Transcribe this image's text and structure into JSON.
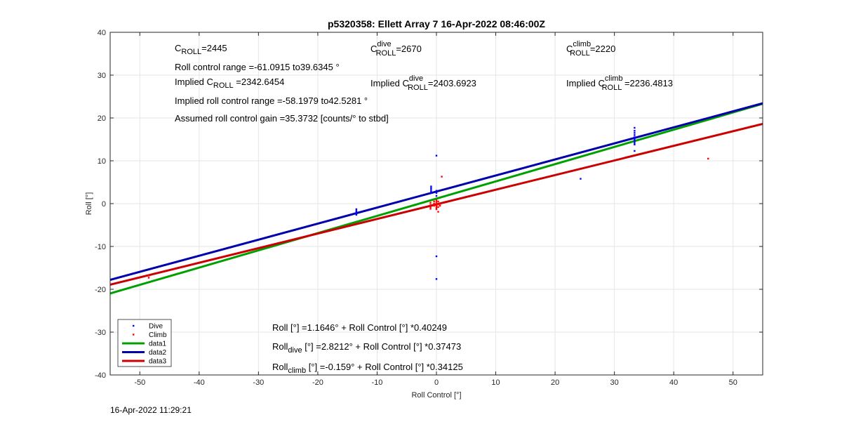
{
  "chart_data": {
    "type": "scatter",
    "title": "p5320358: Ellett Array 7 16-Apr-2022 08:46:00Z",
    "xlabel": "Roll Control [°]",
    "ylabel": "Roll [°]",
    "xlim": [
      -55,
      55
    ],
    "ylim": [
      -40,
      40
    ],
    "xticks": [
      -50,
      -40,
      -30,
      -20,
      -10,
      0,
      10,
      20,
      30,
      40,
      50
    ],
    "yticks": [
      -40,
      -30,
      -20,
      -10,
      0,
      10,
      20,
      30,
      40
    ],
    "grid": true,
    "legend_position": "bottom-left",
    "series": [
      {
        "name": "Dive",
        "kind": "points",
        "color": "#0000ff",
        "points": [
          [
            -13.5,
            -1.3
          ],
          [
            -13.5,
            -1.7
          ],
          [
            -13.5,
            -2.0
          ],
          [
            -13.5,
            -2.3
          ],
          [
            -13.5,
            -2.6
          ],
          [
            -0.9,
            4.0
          ],
          [
            -0.9,
            3.6
          ],
          [
            -0.9,
            3.2
          ],
          [
            -0.9,
            2.8
          ],
          [
            -0.9,
            2.5
          ],
          [
            0,
            11.2
          ],
          [
            0,
            -12.3
          ],
          [
            0,
            -17.6
          ],
          [
            0,
            3.0
          ],
          [
            0,
            2.5
          ],
          [
            0,
            1.8
          ],
          [
            24.3,
            5.8
          ],
          [
            33.4,
            17.7
          ],
          [
            33.4,
            17.0
          ],
          [
            33.4,
            16.5
          ],
          [
            33.4,
            16.0
          ],
          [
            33.4,
            15.5
          ],
          [
            33.4,
            15.0
          ],
          [
            33.4,
            14.6
          ],
          [
            33.4,
            14.2
          ],
          [
            33.4,
            13.8
          ],
          [
            33.4,
            12.3
          ]
        ]
      },
      {
        "name": "Climb",
        "kind": "points",
        "color": "#ff0000",
        "points": [
          [
            -48.5,
            -16.8
          ],
          [
            -48.5,
            -17.3
          ],
          [
            -1.0,
            0.2
          ],
          [
            -1.0,
            -0.3
          ],
          [
            -1.0,
            -0.8
          ],
          [
            -1.0,
            -1.2
          ],
          [
            -0.4,
            0.5
          ],
          [
            -0.4,
            0.0
          ],
          [
            -0.4,
            -0.5
          ],
          [
            0,
            0.8
          ],
          [
            0,
            0.4
          ],
          [
            0,
            0.0
          ],
          [
            0,
            -0.3
          ],
          [
            0,
            -0.6
          ],
          [
            0,
            -1.0
          ],
          [
            0,
            -1.3
          ],
          [
            0.3,
            0.5
          ],
          [
            0.3,
            -0.2
          ],
          [
            0.3,
            -0.8
          ],
          [
            0.3,
            -1.9
          ],
          [
            0.6,
            -0.1
          ],
          [
            0.6,
            -0.5
          ],
          [
            0.9,
            6.3
          ],
          [
            45.8,
            10.5
          ]
        ]
      },
      {
        "name": "data1",
        "kind": "line",
        "color": "#00a000",
        "intercept": 1.1646,
        "slope": 0.40249
      },
      {
        "name": "data2",
        "kind": "line",
        "color": "#0000aa",
        "intercept": 2.8212,
        "slope": 0.37473
      },
      {
        "name": "data3",
        "kind": "line",
        "color": "#cc0000",
        "intercept": -0.159,
        "slope": 0.34125
      }
    ],
    "annotations": {
      "c_roll": {
        "base": "C",
        "sub": "ROLL",
        "value": "=2445"
      },
      "roll_range": "Roll control range =-61.0915 to39.6345 °",
      "implied_c_roll": {
        "prefix": "Implied C",
        "sub": "ROLL",
        "value": " =2342.6454"
      },
      "implied_range": "Implied roll control range =-58.1979 to42.5281 °",
      "gain": "Assumed roll control gain =35.3732 [counts/° to stbd]",
      "c_dive": {
        "base": "C",
        "sup": "dive",
        "sub": "ROLL",
        "value": "=2670"
      },
      "implied_c_dive": {
        "prefix": "Implied C",
        "sup": "dive",
        "sub": "ROLL",
        "value": "=2403.6923"
      },
      "c_climb": {
        "base": "C",
        "sup": "climb",
        "sub": "ROLL",
        "value": "=2220"
      },
      "implied_c_climb": {
        "prefix": "Implied C",
        "sup": "climb",
        "sub": "ROLL",
        "value": " =2236.4813"
      },
      "fit_all": "Roll [°] =1.1646° + Roll Control [°] *0.40249",
      "fit_dive": {
        "base": "Roll",
        "sub": "dive",
        "value": " [°] =2.8212° + Roll Control [°] *0.37473"
      },
      "fit_climb": {
        "base": "Roll",
        "sub": "climb",
        "value": " [°] =-0.159° + Roll Control [°] *0.34125"
      }
    }
  },
  "timestamp": "16-Apr-2022 11:29:21"
}
